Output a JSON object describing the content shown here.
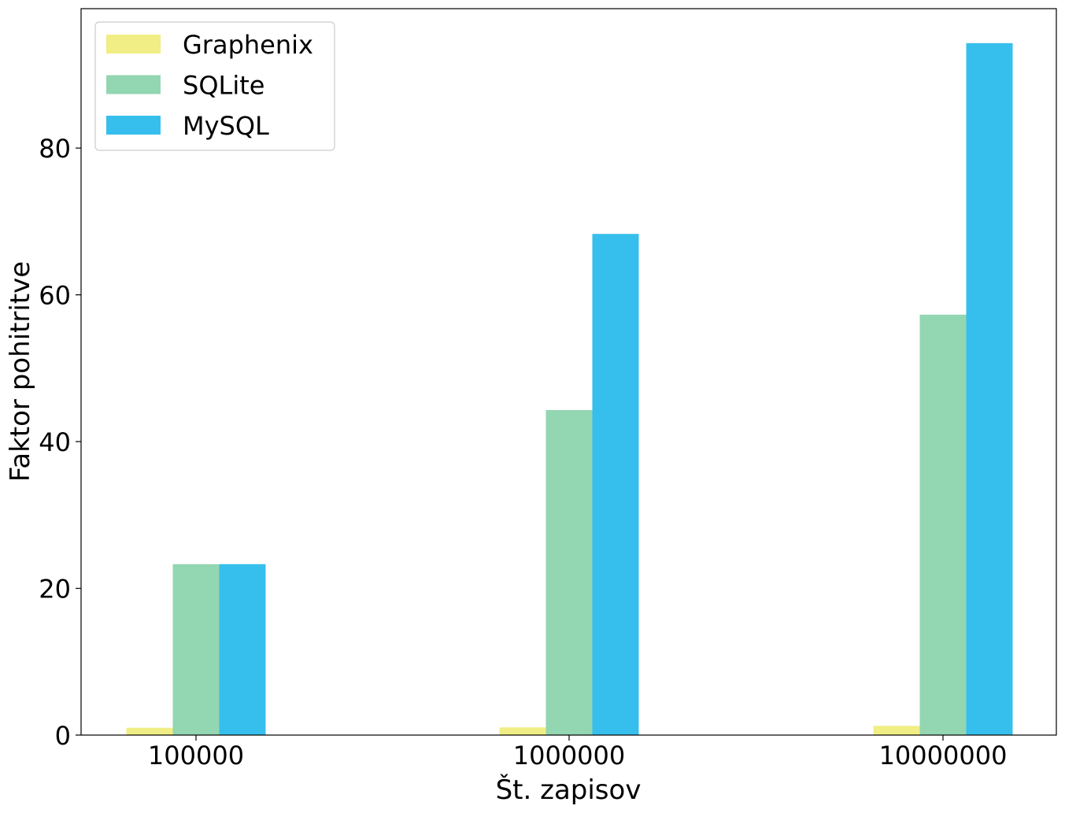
{
  "chart_data": {
    "type": "bar",
    "categories": [
      "100000",
      "1000000",
      "10000000"
    ],
    "series": [
      {
        "name": "Graphenix",
        "color": "#f0ee84",
        "values": [
          1.0,
          1.05,
          1.25
        ]
      },
      {
        "name": "SQLite",
        "color": "#93d6b2",
        "values": [
          23.3,
          44.3,
          57.3
        ]
      },
      {
        "name": "MySQL",
        "color": "#36bfec",
        "values": [
          23.3,
          68.3,
          94.3
        ]
      }
    ],
    "xlabel": "Št. zapisov",
    "ylabel": "Faktor pohitritve",
    "ylim": [
      0,
      99
    ],
    "yticks": [
      0,
      20,
      40,
      60,
      80
    ],
    "legend_position": "top-left",
    "grid": false
  }
}
